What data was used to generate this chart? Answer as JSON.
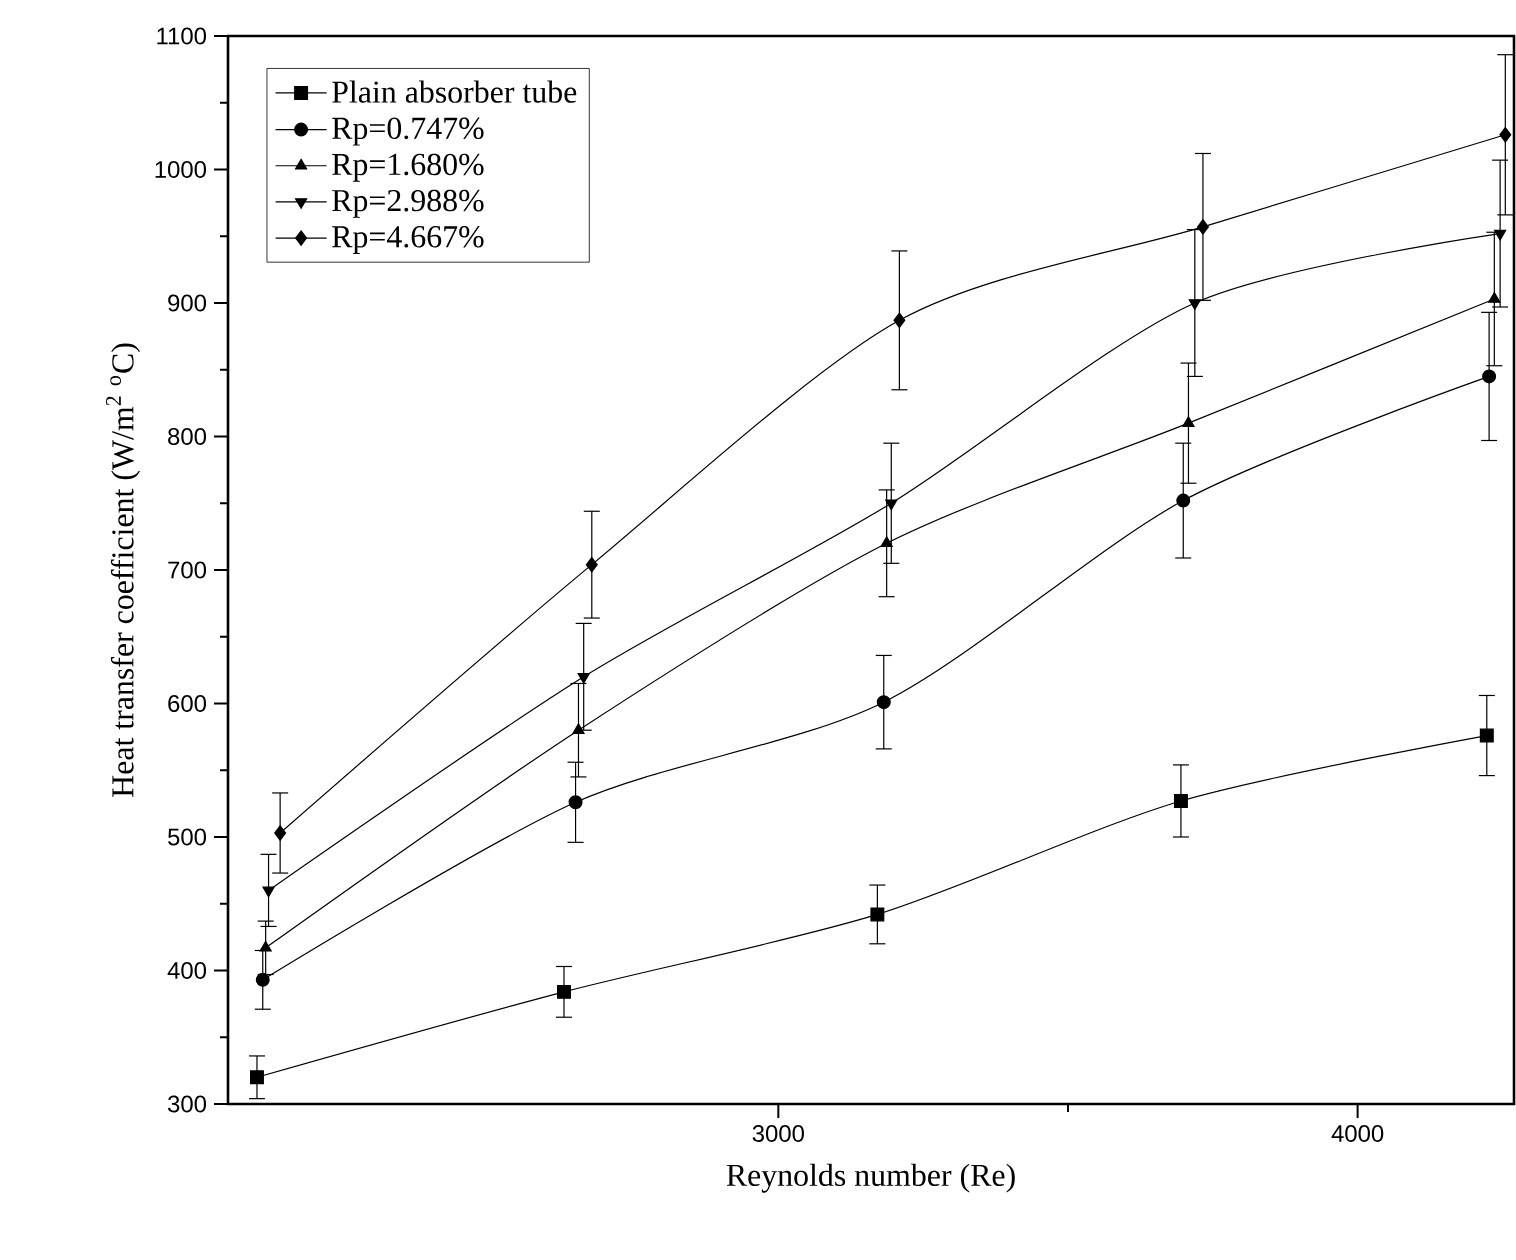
{
  "chart_data": {
    "type": "line",
    "xlabel": "Reynolds number (Re)",
    "ylabel": "Heat transfer coefficient (W/m$^{2}$ $^{o}$C)",
    "xlim": [
      2050,
      4270
    ],
    "xticks": [
      3000,
      4000
    ],
    "ylim": [
      300,
      1100
    ],
    "yticks": [
      300,
      400,
      500,
      600,
      700,
      800,
      900,
      1000,
      1100
    ],
    "legend": "top left",
    "grid": false,
    "line_style": "solid",
    "series": [
      {
        "name": "Plain absorber tube",
        "color": "#000000",
        "marker": "square",
        "x": [
          2100,
          2630,
          3171,
          3695,
          4223
        ],
        "values": [
          320,
          384,
          442,
          527,
          576
        ],
        "errors": [
          16,
          19,
          22,
          27,
          30
        ]
      },
      {
        "name": "Rp=0.747%",
        "color": "#000000",
        "marker": "circle",
        "x": [
          2110,
          2650,
          3182,
          3699,
          4227
        ],
        "values": [
          393,
          526,
          601,
          752,
          845
        ],
        "errors": [
          22,
          30,
          35,
          43,
          48
        ]
      },
      {
        "name": "Rp=1.680%",
        "color": "#000000",
        "marker": "triangle",
        "x": [
          2115,
          2655,
          3187,
          3708,
          4236
        ],
        "values": [
          417,
          580,
          720,
          810,
          903
        ],
        "errors": [
          20,
          35,
          40,
          45,
          50
        ]
      },
      {
        "name": "Rp=2.988%",
        "color": "#000000",
        "marker": "triangle-down",
        "x": [
          2120,
          2664,
          3195,
          3719,
          4246
        ],
        "values": [
          460,
          620,
          750,
          900,
          952
        ],
        "errors": [
          27,
          40,
          45,
          55,
          55
        ]
      },
      {
        "name": "Rp=4.667%",
        "color": "#000000",
        "marker": "diamond",
        "x": [
          2140,
          2678,
          3209,
          3733,
          4255
        ],
        "values": [
          503,
          704,
          887,
          957,
          1026
        ],
        "errors": [
          30,
          40,
          52,
          55,
          60
        ]
      }
    ]
  }
}
